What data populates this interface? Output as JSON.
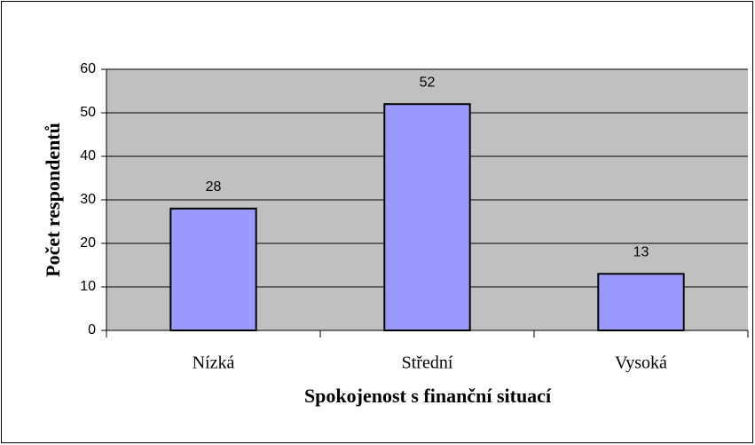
{
  "chart_data": {
    "type": "bar",
    "xlabel": "Spokojenost s finanční situací",
    "ylabel": "Počet respondentů",
    "categories": [
      "Nízká",
      "Střední",
      "Vysoká"
    ],
    "values": [
      28,
      52,
      13
    ],
    "color": "#9999ff",
    "ylim": [
      0,
      60
    ],
    "yticks": [
      0,
      10,
      20,
      30,
      40,
      50,
      60
    ],
    "grid": true
  }
}
